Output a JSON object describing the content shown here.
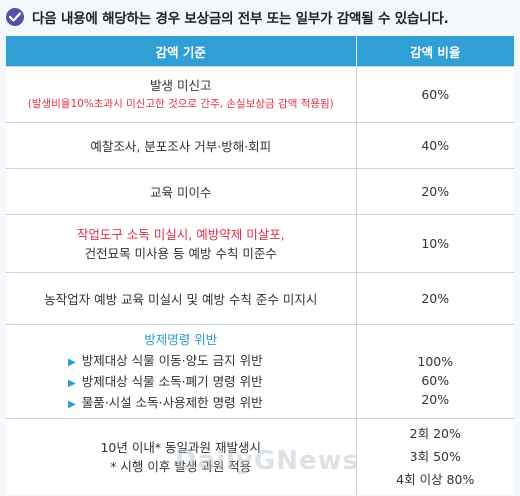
{
  "header": {
    "text": "다음 내용에 해당하는 경우 보상금의 전부 또는 일부가 감액될 수 있습니다."
  },
  "table": {
    "col_criteria": "감액 기준",
    "col_rate": "감액 비율",
    "rows": {
      "r1": {
        "title": "발생 미신고",
        "note": "(발생비율10%초과시 미신고한 것으로 간주, 손실보상금 감액 적용됨)",
        "rate": "60%"
      },
      "r2": {
        "title": "예찰조사, 분포조사 거부·방해·회피",
        "rate": "40%"
      },
      "r3": {
        "title": "교육 미이수",
        "rate": "20%"
      },
      "r4": {
        "line1": "작업도구 소독 미실시, 예방약제 미살포,",
        "line2": "건전묘목 미사용 등 예방 수칙 미준수",
        "rate": "10%"
      },
      "r5": {
        "title": "농작업자 예방 교육 미실시 및 예방 수칙 준수 미지시",
        "rate": "20%"
      },
      "r6": {
        "title": "방제명령 위반",
        "items": [
          "방제대상 식물 이동·양도 금지 위반",
          "방제대상 식물 소독·폐기 명령 위반",
          "물품·시설 소독·사용제한 명령 위반"
        ],
        "rates": [
          "100%",
          "60%",
          "20%"
        ]
      },
      "r7": {
        "line1": "10년 이내* 동일과원 재발생시",
        "line2": "* 시행 이후 발생 과원 적용",
        "rates": [
          "2회 20%",
          "3회 50%",
          "4회 이상 80%"
        ]
      }
    }
  },
  "watermark": "DailyGNews",
  "colors": {
    "accent_blue": "#2f9fd6",
    "red_text": "#e0304a",
    "check_purple": "#5b4ea8"
  }
}
